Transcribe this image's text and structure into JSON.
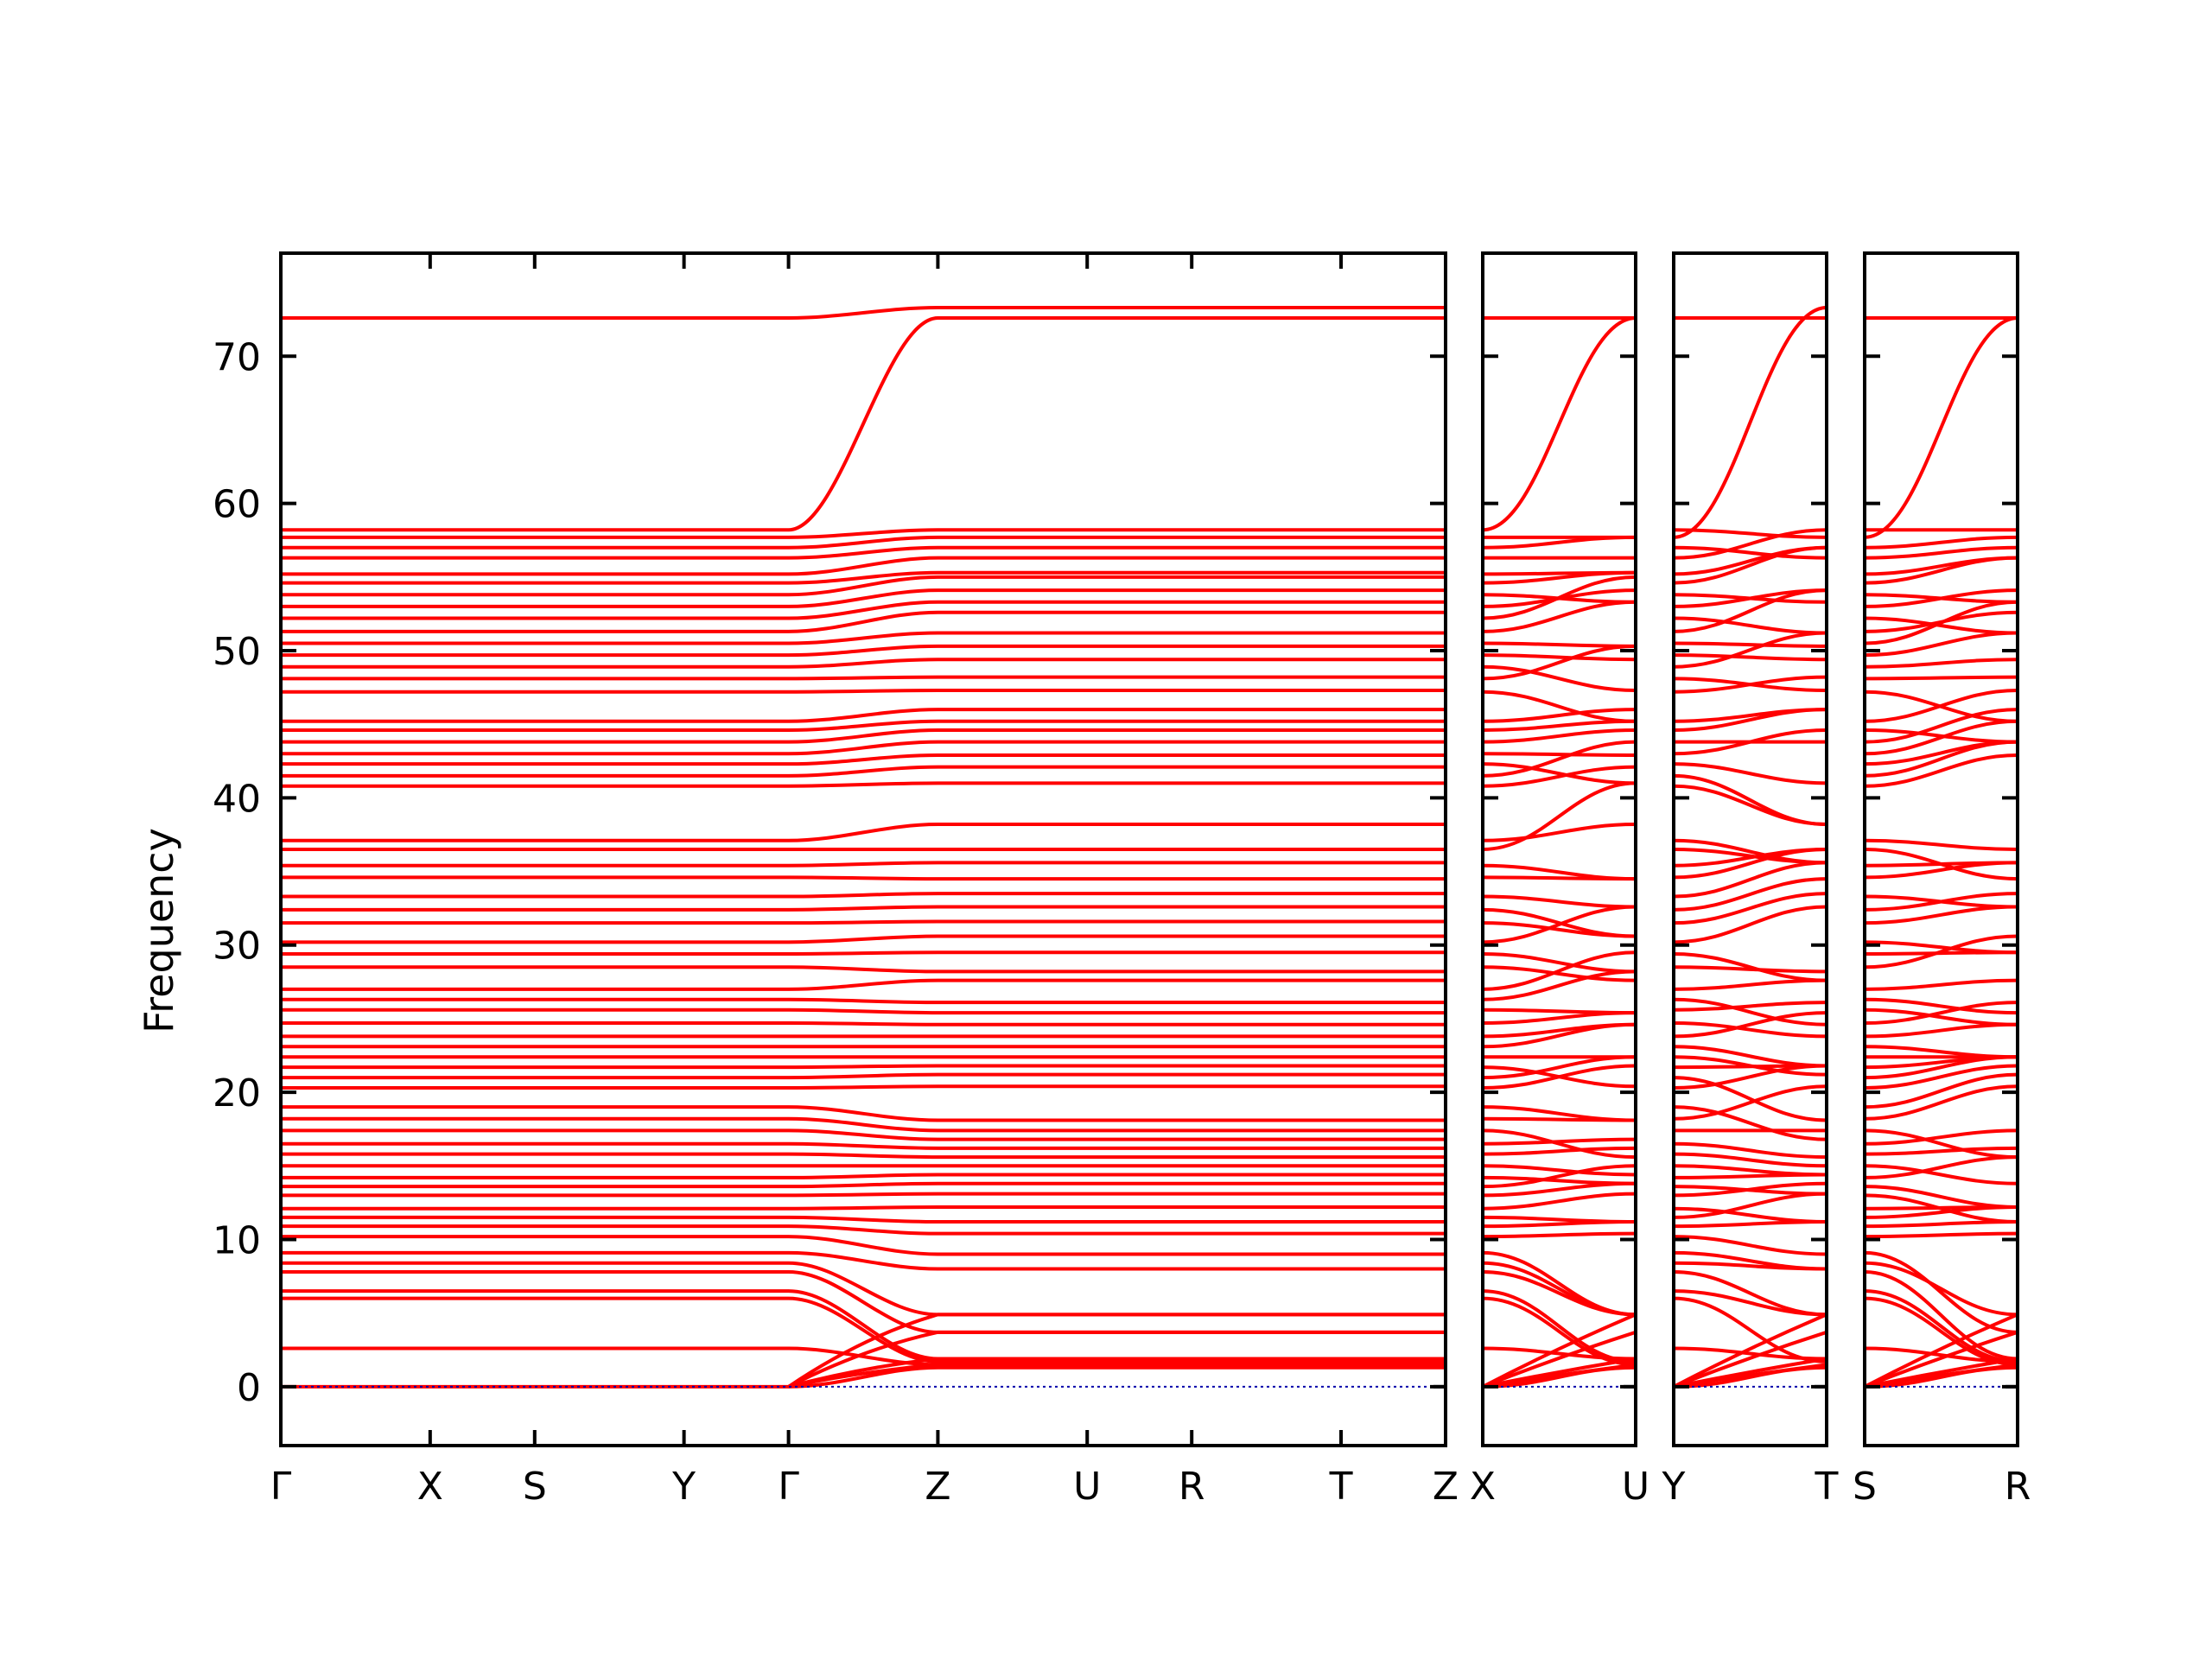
{
  "chart_data": {
    "type": "line",
    "title": "",
    "xlabel": "",
    "ylabel": "Frequency",
    "ylim": [
      -4,
      77
    ],
    "yticks": [
      0,
      10,
      20,
      30,
      40,
      50,
      60,
      70
    ],
    "grid": false,
    "legend": "none",
    "colors": {
      "bands": "#ff0000",
      "zero_line": "#0000aa",
      "frame": "#000000"
    },
    "panels": [
      {
        "labels": [
          "Γ",
          "X",
          "S",
          "Y",
          "Γ",
          "Z",
          "U",
          "R",
          "T",
          "Z"
        ],
        "x": [
          0,
          1.0,
          1.7,
          2.7,
          3.4,
          4.4,
          5.4,
          6.1,
          7.1,
          7.8
        ]
      },
      {
        "labels": [
          "X",
          "U"
        ],
        "x": [
          0,
          1.0
        ]
      },
      {
        "labels": [
          "Y",
          "T"
        ],
        "x": [
          0,
          1.0
        ]
      },
      {
        "labels": [
          "S",
          "R"
        ],
        "x": [
          0,
          1.0
        ]
      }
    ],
    "flat_bands": [
      0.0,
      2.6,
      6.0,
      6.5,
      7.8,
      8.4,
      9.1,
      10.2,
      10.9,
      11.5,
      12.1,
      13.0,
      13.6,
      14.2,
      15.0,
      15.8,
      16.5,
      17.4,
      18.2,
      19.0,
      20.3,
      21.0,
      21.7,
      22.4,
      23.1,
      23.8,
      24.7,
      25.6,
      26.3,
      27.0,
      28.5,
      29.4,
      30.2,
      31.5,
      32.4,
      33.3,
      34.6,
      35.4,
      36.5,
      37.1,
      40.8,
      41.5,
      42.3,
      43.0,
      43.8,
      44.6,
      45.2,
      47.2,
      48.1,
      48.9,
      49.7,
      50.5,
      51.3,
      52.2,
      53.0,
      53.8,
      54.6,
      55.2,
      56.3,
      57.0,
      57.7,
      58.2,
      72.6,
      73.3
    ],
    "z_bands": [
      1.3,
      1.5,
      1.7,
      1.9,
      3.7,
      4.9,
      8.0,
      9.0,
      10.4,
      11.2,
      12.2,
      13.1,
      13.8,
      14.4,
      15.0,
      15.6,
      16.2,
      16.8,
      17.4,
      18.1,
      20.4,
      21.2,
      21.8,
      22.4,
      23.1,
      23.8,
      24.6,
      25.4,
      26.1,
      27.6,
      28.2,
      29.5,
      30.6,
      31.6,
      32.6,
      33.5,
      34.5,
      35.6,
      36.5,
      38.2,
      41.0,
      42.1,
      42.9,
      43.8,
      44.6,
      45.2,
      46.0,
      47.3,
      48.2,
      49.4,
      50.3,
      51.2,
      52.6,
      53.3,
      54.1,
      55.0,
      55.3,
      56.3,
      57.0,
      57.7,
      58.2,
      72.6,
      73.3
    ]
  }
}
